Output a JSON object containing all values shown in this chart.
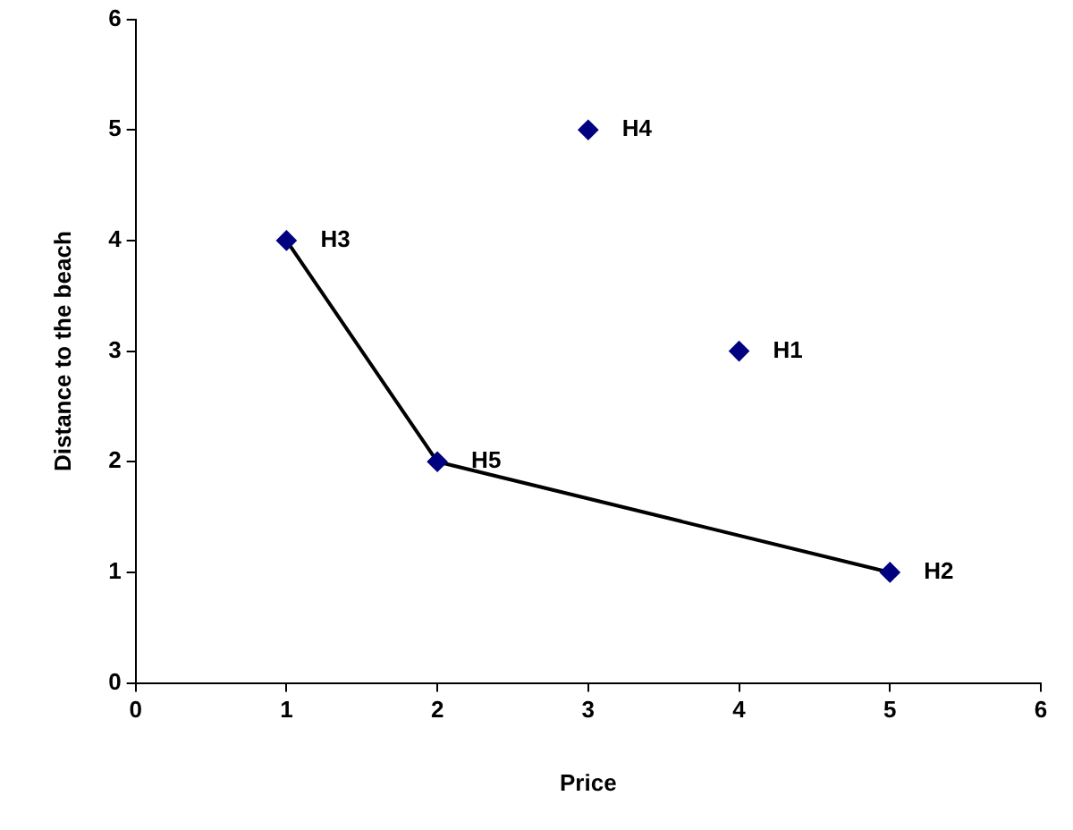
{
  "chart_data": {
    "type": "scatter",
    "xlabel": "Price",
    "ylabel": "Distance to the beach",
    "xlim": [
      0,
      6
    ],
    "ylim": [
      0,
      6
    ],
    "xticks": [
      0,
      1,
      2,
      3,
      4,
      5,
      6
    ],
    "yticks": [
      0,
      1,
      2,
      3,
      4,
      5,
      6
    ],
    "grid": false,
    "legend": false,
    "series": [
      {
        "type": "scatter",
        "color": "#000080",
        "marker": "diamond",
        "x": [
          4,
          5,
          1,
          3,
          2
        ],
        "values": [
          3,
          1,
          4,
          5,
          2
        ]
      },
      {
        "type": "line",
        "color": "#000000",
        "marker": "none",
        "line_style": "solid",
        "x": [
          1,
          2,
          5
        ],
        "values": [
          4,
          2,
          1
        ]
      }
    ],
    "annotations": [
      {
        "text": "H1",
        "x": 4,
        "y": 3
      },
      {
        "text": "H2",
        "x": 5,
        "y": 1
      },
      {
        "text": "H3",
        "x": 1,
        "y": 4
      },
      {
        "text": "H4",
        "x": 3,
        "y": 5
      },
      {
        "text": "H5",
        "x": 2,
        "y": 2
      }
    ]
  }
}
